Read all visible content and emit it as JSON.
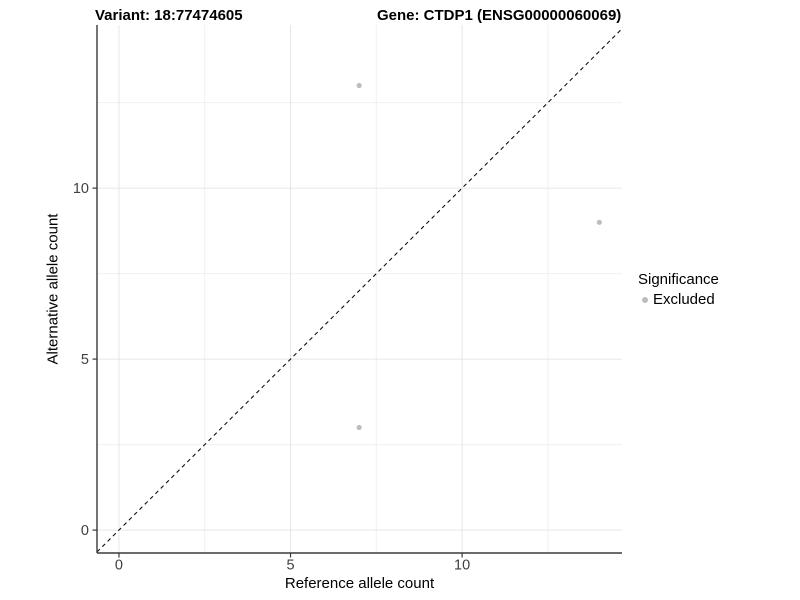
{
  "chart_data": {
    "type": "scatter",
    "title_left": "Variant: 18:77474605",
    "title_right": "Gene: CTDP1 (ENSG00000060069)",
    "xlabel": "Reference allele count",
    "ylabel": "Alternative allele count",
    "xlim": [
      -0.64,
      14.66
    ],
    "ylim": [
      -0.67,
      14.77
    ],
    "x_major_ticks": [
      0,
      5,
      10
    ],
    "y_major_ticks": [
      0,
      5,
      10
    ],
    "x_minor_ticks": [
      2.5,
      7.5,
      12.5
    ],
    "y_minor_ticks": [
      2.5,
      7.5,
      12.5
    ],
    "grid": true,
    "identity_line": {
      "style": "dashed",
      "from": -0.64,
      "to": 14.66,
      "color": "#111111"
    },
    "series": [
      {
        "name": "Excluded",
        "color": "#bdbdbd",
        "points": [
          [
            7,
            13
          ],
          [
            14,
            9
          ],
          [
            7,
            3
          ]
        ]
      }
    ],
    "legend": {
      "title": "Significance",
      "position": "right",
      "entries": [
        {
          "label": "Excluded",
          "color": "#bdbdbd"
        }
      ]
    },
    "colors": {
      "grid_major": "#e6e6e6",
      "grid_minor": "#f0f0f0",
      "axis_line": "#3a3a3a",
      "tick_label": "#404040"
    }
  }
}
